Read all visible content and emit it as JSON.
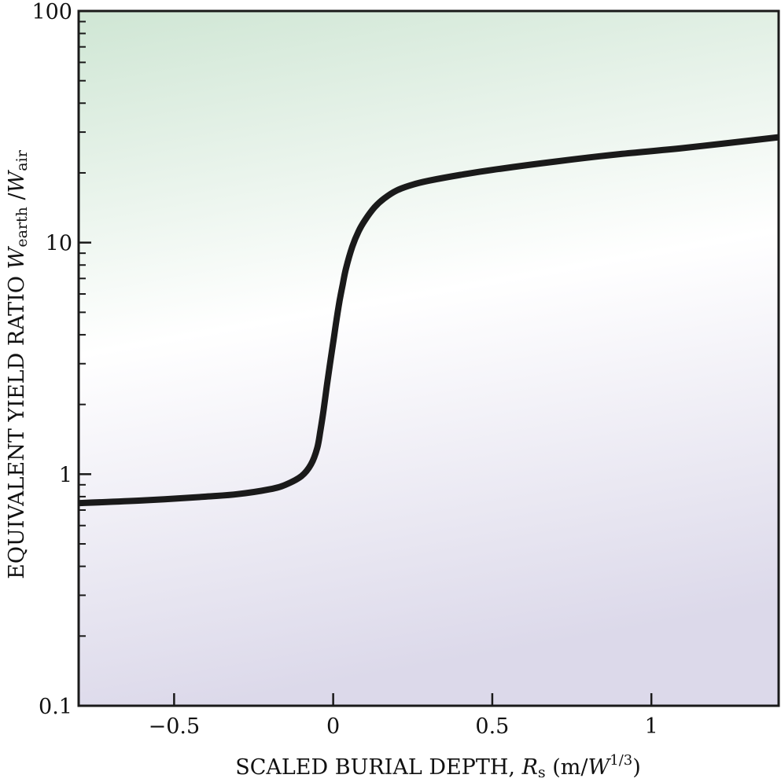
{
  "chart_data": {
    "type": "line",
    "title": "",
    "xlabel": {
      "prefix": "SCALED BURIAL DEPTH, ",
      "symbol": "R",
      "symbol_sub": "s",
      "unit_open": " (m/",
      "unit_symbol": "W",
      "unit_exp": "1/3",
      "unit_close": ")"
    },
    "ylabel": {
      "prefix": "EQUIVALENT YIELD RATIO ",
      "num_symbol": "W",
      "num_sub": "earth",
      "slash": " /",
      "den_symbol": "W",
      "den_sub": "air"
    },
    "xlim": [
      -0.8,
      1.4
    ],
    "ylim": [
      0.1,
      100
    ],
    "yscale": "log",
    "grid": false,
    "background": {
      "top_color": "#cfe6d4",
      "middle_color": "#ffffff",
      "bottom_color": "#dcd9ea"
    },
    "line_color": "#1a1a1a",
    "x_ticks": [
      {
        "value": -0.5,
        "label": "−0.5"
      },
      {
        "value": 0,
        "label": "0"
      },
      {
        "value": 0.5,
        "label": "0.5"
      },
      {
        "value": 1,
        "label": "1"
      }
    ],
    "y_ticks": [
      {
        "value": 0.1,
        "label": "0.1"
      },
      {
        "value": 1,
        "label": "1"
      },
      {
        "value": 10,
        "label": "10"
      },
      {
        "value": 100,
        "label": "100"
      }
    ],
    "series": [
      {
        "x": [
          -0.8,
          -0.6,
          -0.4,
          -0.3,
          -0.2,
          -0.15,
          -0.1,
          -0.07,
          -0.05,
          -0.04,
          -0.03,
          -0.02,
          -0.01,
          0.0,
          0.01,
          0.02,
          0.03,
          0.04,
          0.06,
          0.08,
          0.1,
          0.13,
          0.16,
          0.2,
          0.25,
          0.3,
          0.4,
          0.5,
          0.7,
          0.9,
          1.1,
          1.4
        ],
        "y": [
          0.75,
          0.77,
          0.8,
          0.82,
          0.86,
          0.9,
          0.98,
          1.1,
          1.3,
          1.55,
          1.9,
          2.4,
          3.0,
          3.7,
          4.6,
          5.6,
          6.6,
          7.7,
          9.6,
          11.2,
          12.5,
          14.2,
          15.5,
          16.8,
          17.8,
          18.5,
          19.6,
          20.6,
          22.4,
          24.1,
          25.6,
          28.5
        ]
      }
    ]
  }
}
